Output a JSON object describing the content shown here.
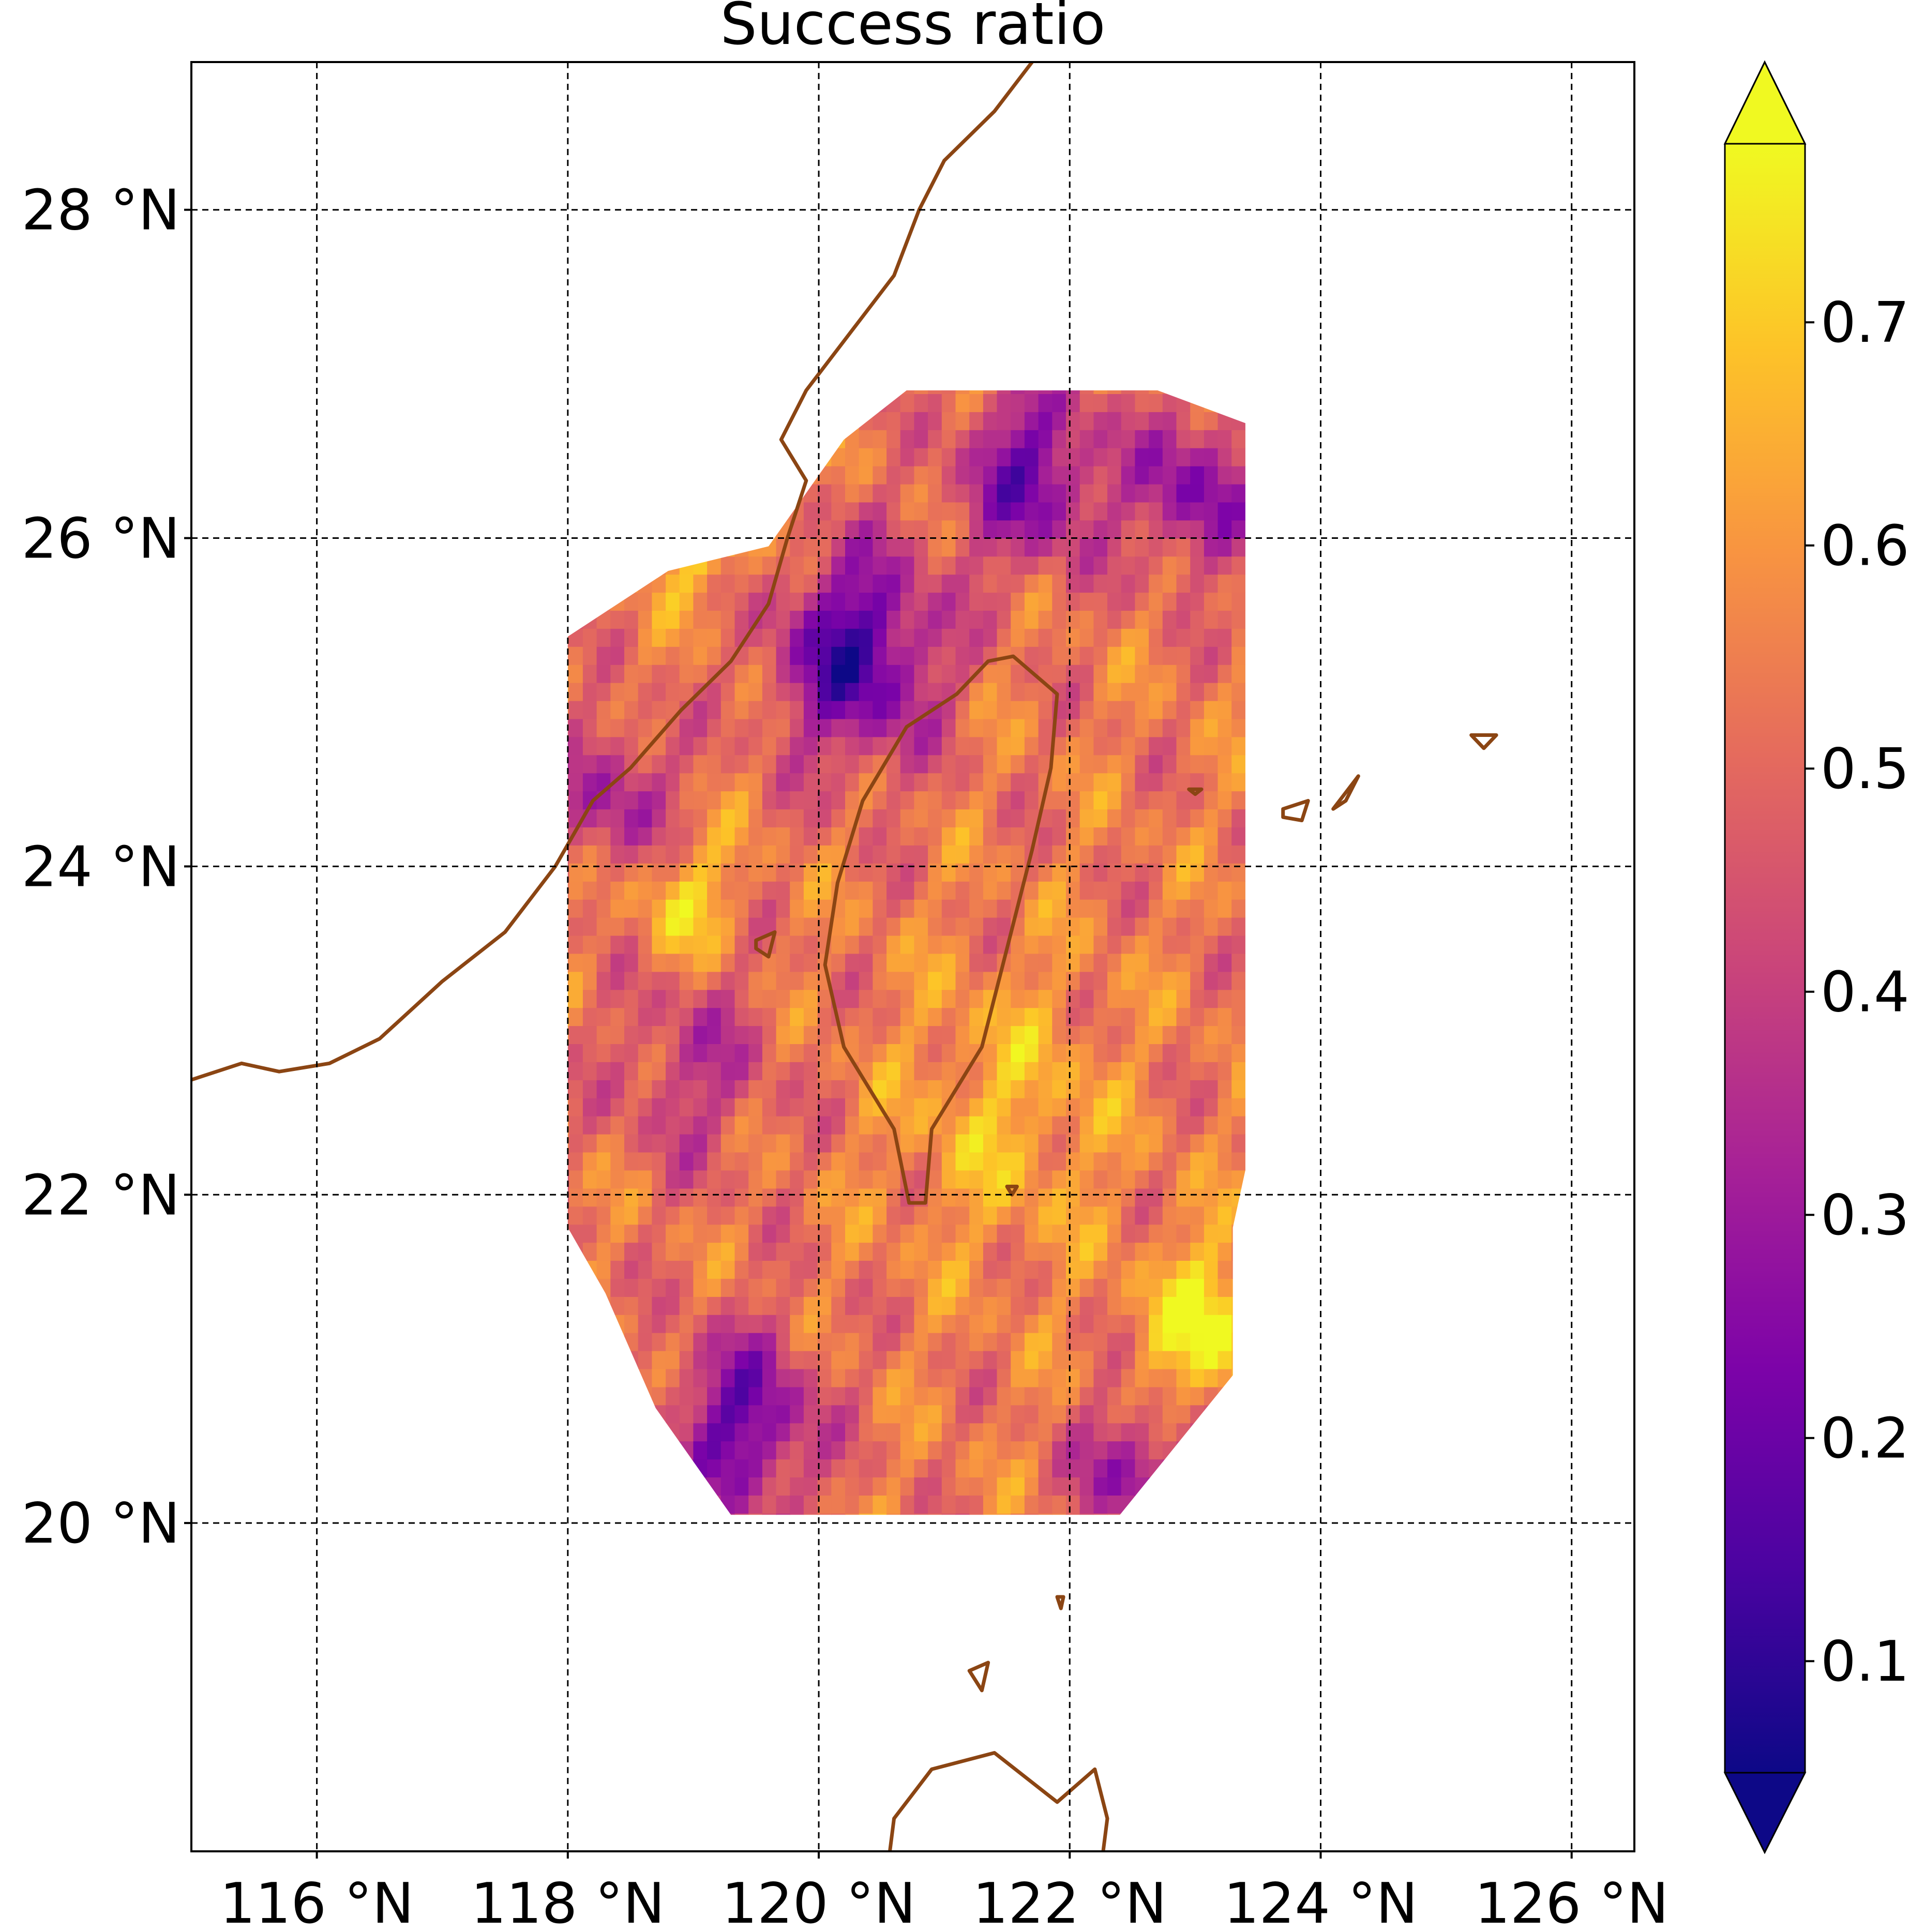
{
  "title": "Success ratio",
  "map": {
    "lon_range": [
      115,
      126.5
    ],
    "lat_range": [
      18.0,
      28.9
    ],
    "lon_ticks": [
      116,
      118,
      120,
      122,
      124,
      126
    ],
    "lat_ticks": [
      20,
      22,
      24,
      26,
      28
    ],
    "lon_tick_labels": [
      "116 °N",
      "118 °N",
      "120 °N",
      "122 °N",
      "124 °N",
      "126 °N"
    ],
    "lat_tick_labels": [
      "20 °N",
      "22 °N",
      "24 °N",
      "26 °N",
      "28 °N"
    ],
    "gridlines": true,
    "coastline_color": "#8b4513",
    "field": {
      "variable": "success ratio",
      "colormap": "plasma",
      "data_region_vertices_lonlat": [
        [
          120.7,
          26.9
        ],
        [
          122.7,
          26.9
        ],
        [
          123.4,
          26.7
        ],
        [
          123.4,
          22.15
        ],
        [
          123.3,
          21.8
        ],
        [
          123.3,
          20.9
        ],
        [
          122.4,
          20.05
        ],
        [
          119.3,
          20.05
        ],
        [
          118.7,
          20.7
        ],
        [
          118.3,
          21.4
        ],
        [
          118.0,
          21.8
        ],
        [
          118.0,
          25.4
        ],
        [
          118.8,
          25.8
        ],
        [
          119.6,
          25.95
        ],
        [
          120.2,
          26.6
        ]
      ]
    }
  },
  "colorbar": {
    "min": 0.05,
    "max": 0.78,
    "ticks": [
      0.1,
      0.2,
      0.3,
      0.4,
      0.5,
      0.6,
      0.7
    ],
    "tick_labels": [
      "0.1",
      "0.2",
      "0.3",
      "0.4",
      "0.5",
      "0.6",
      "0.7"
    ],
    "extend": "both",
    "colormap": "plasma"
  }
}
